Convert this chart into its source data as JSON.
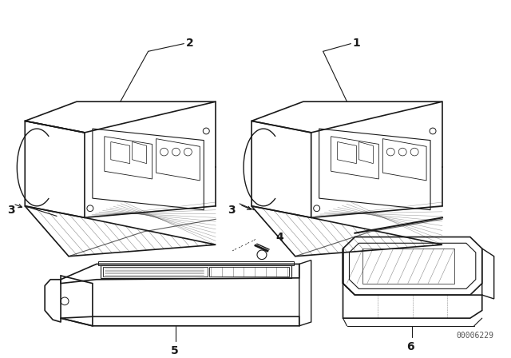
{
  "background_color": "#ffffff",
  "fig_width": 6.4,
  "fig_height": 4.48,
  "dpi": 100,
  "line_color": "#1a1a1a",
  "label_color": "#000000",
  "watermark": "00006229",
  "watermark_fontsize": 7
}
